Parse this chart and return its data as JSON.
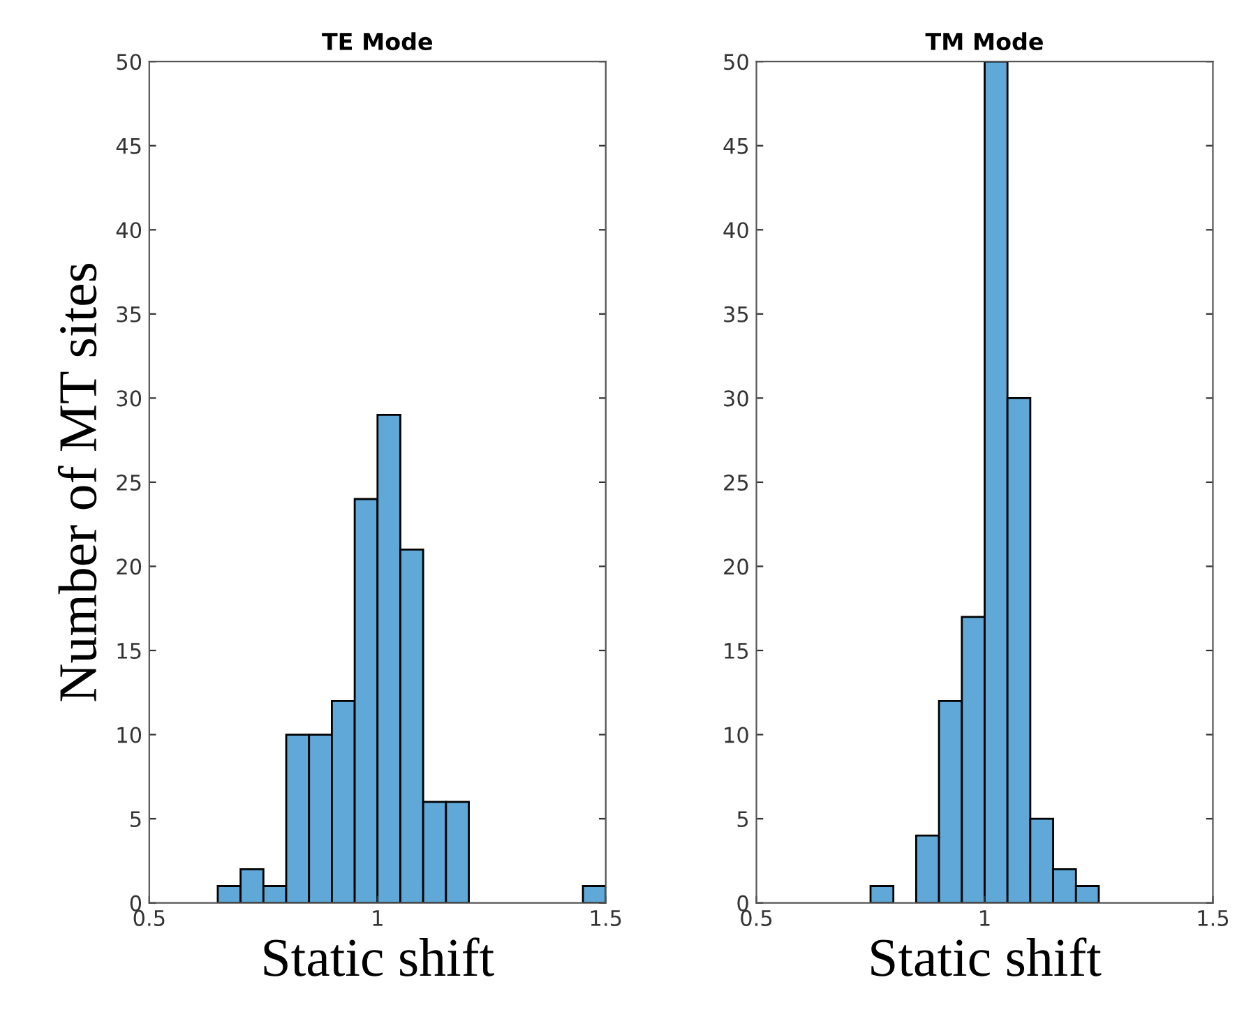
{
  "chart_data": [
    {
      "type": "histogram",
      "title": "TE Mode",
      "xlabel": "Static shift",
      "ylabel": "Number of MT sites",
      "color": "#5fa8d8",
      "bins": [
        0.65,
        0.7,
        0.75,
        0.8,
        0.85,
        0.9,
        0.95,
        1.0,
        1.05,
        1.1,
        1.15,
        1.2,
        1.25,
        1.3,
        1.35,
        1.4,
        1.45,
        1.5
      ],
      "values": [
        1,
        2,
        1,
        10,
        10,
        12,
        24,
        29,
        21,
        6,
        6,
        0,
        0,
        0,
        0,
        0,
        1
      ],
      "xlim": [
        0.5,
        1.5
      ],
      "xticks": [
        0.5,
        1,
        1.5
      ],
      "ylim": [
        0,
        50
      ],
      "yticks": [
        0,
        5,
        10,
        15,
        20,
        25,
        30,
        35,
        40,
        45,
        50
      ],
      "grid": false
    },
    {
      "type": "histogram",
      "title": "TM Mode",
      "xlabel": "Static shift",
      "color": "#5fa8d8",
      "bins": [
        0.75,
        0.8,
        0.85,
        0.9,
        0.95,
        1.0,
        1.05,
        1.1,
        1.15,
        1.2,
        1.25
      ],
      "values": [
        1,
        0,
        4,
        12,
        17,
        50,
        30,
        5,
        2,
        1
      ],
      "xlim": [
        0.5,
        1.5
      ],
      "xticks": [
        0.5,
        1,
        1.5
      ],
      "ylim": [
        0,
        50
      ],
      "yticks": [
        0,
        5,
        10,
        15,
        20,
        25,
        30,
        35,
        40,
        45,
        50
      ],
      "grid": false
    }
  ]
}
